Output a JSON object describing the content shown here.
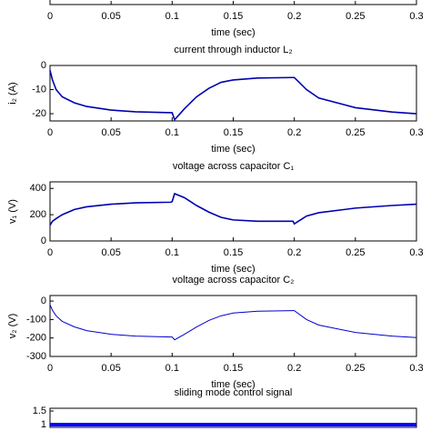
{
  "chart_data": [
    {
      "type": "line",
      "xlabel": "time (sec)",
      "xlim": [
        0,
        0.3
      ],
      "xticks": [
        0,
        0.05,
        0.1,
        0.15,
        0.2,
        0.25,
        0.3
      ]
    },
    {
      "type": "line",
      "title": "current through inductor L₂",
      "ylabel": "i₂ (A)",
      "xlabel": "time (sec)",
      "xlim": [
        0,
        0.3
      ],
      "xticks": [
        0,
        0.05,
        0.1,
        0.15,
        0.2,
        0.25,
        0.3
      ],
      "ylim": [
        -23,
        0
      ],
      "yticks": [
        0,
        -10,
        -20
      ],
      "x": [
        0,
        0.002,
        0.005,
        0.01,
        0.02,
        0.03,
        0.05,
        0.07,
        0.099,
        0.1,
        0.102,
        0.11,
        0.12,
        0.13,
        0.14,
        0.15,
        0.17,
        0.199,
        0.2,
        0.21,
        0.22,
        0.25,
        0.28,
        0.3
      ],
      "series": [
        {
          "color": "#0000b0",
          "values": [
            -2,
            -6,
            -10,
            -13,
            -15.5,
            -17,
            -18.5,
            -19.2,
            -19.6,
            -19.6,
            -22.5,
            -18,
            -13,
            -9.5,
            -7,
            -6,
            -5.2,
            -5,
            -5,
            -10,
            -13.5,
            -17.5,
            -19.3,
            -20
          ]
        }
      ]
    },
    {
      "type": "line",
      "title": "voltage across capacitor C₁",
      "ylabel": "v₁ (V)",
      "xlabel": "time (sec)",
      "xlim": [
        0,
        0.3
      ],
      "xticks": [
        0,
        0.05,
        0.1,
        0.15,
        0.2,
        0.25,
        0.3
      ],
      "ylim": [
        0,
        450
      ],
      "yticks": [
        0,
        200,
        400
      ],
      "x": [
        0,
        0.002,
        0.005,
        0.01,
        0.02,
        0.03,
        0.05,
        0.07,
        0.099,
        0.1,
        0.102,
        0.11,
        0.12,
        0.13,
        0.14,
        0.15,
        0.17,
        0.199,
        0.2,
        0.21,
        0.22,
        0.25,
        0.28,
        0.3
      ],
      "series": [
        {
          "color": "#0000b0",
          "values": [
            120,
            150,
            170,
            200,
            240,
            260,
            280,
            290,
            295,
            300,
            360,
            330,
            270,
            220,
            180,
            160,
            150,
            150,
            130,
            190,
            215,
            250,
            270,
            280
          ]
        }
      ]
    },
    {
      "type": "line",
      "title": "voltage across capacitor C₂",
      "ylabel": "v₂ (V)",
      "xlabel": "time (sec)",
      "xlim": [
        0,
        0.3
      ],
      "xticks": [
        0,
        0.05,
        0.1,
        0.15,
        0.2,
        0.25,
        0.3
      ],
      "ylim": [
        -300,
        30
      ],
      "yticks": [
        0,
        -100,
        -200,
        -300
      ],
      "x": [
        0,
        0.002,
        0.005,
        0.01,
        0.02,
        0.03,
        0.05,
        0.07,
        0.099,
        0.1,
        0.102,
        0.11,
        0.12,
        0.13,
        0.14,
        0.15,
        0.17,
        0.199,
        0.2,
        0.21,
        0.22,
        0.25,
        0.28,
        0.3
      ],
      "series": [
        {
          "color": "#0000cc",
          "values": [
            -20,
            -50,
            -80,
            -110,
            -140,
            -160,
            -180,
            -190,
            -195,
            -195,
            -210,
            -180,
            -140,
            -105,
            -80,
            -65,
            -55,
            -52,
            -52,
            -100,
            -130,
            -170,
            -190,
            -198
          ]
        }
      ]
    },
    {
      "type": "line",
      "title": "sliding mode control signal",
      "xlim": [
        0,
        0.3
      ],
      "ylim": [
        0.9,
        1.6
      ],
      "yticks": [
        1,
        1.5
      ],
      "x": [
        0,
        0.3
      ],
      "series": [
        {
          "color": "#0000ff",
          "values": [
            1,
            1
          ]
        }
      ]
    }
  ]
}
